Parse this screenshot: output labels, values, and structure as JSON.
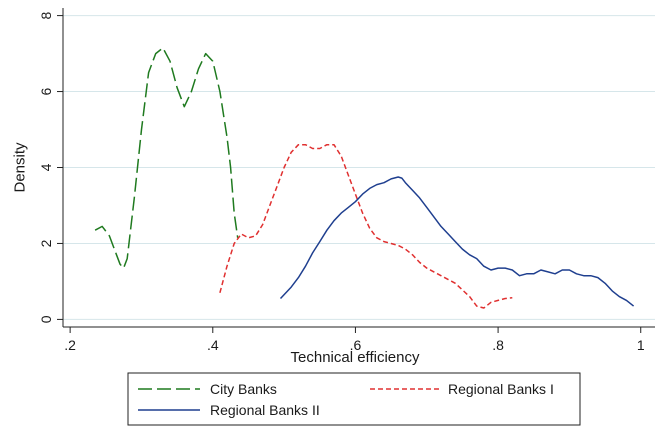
{
  "chart_data": {
    "type": "line",
    "title": "",
    "xlabel": "Technical efficiency",
    "ylabel": "Density",
    "xlim": [
      0.19,
      1.02
    ],
    "ylim": [
      -0.2,
      8.2
    ],
    "xticks": [
      {
        "value": 0.2,
        "label": ".2"
      },
      {
        "value": 0.4,
        "label": ".4"
      },
      {
        "value": 0.6,
        "label": ".6"
      },
      {
        "value": 0.8,
        "label": ".8"
      },
      {
        "value": 1.0,
        "label": "1"
      }
    ],
    "yticks": [
      {
        "value": 0,
        "label": "0"
      },
      {
        "value": 2,
        "label": "2"
      },
      {
        "value": 4,
        "label": "4"
      },
      {
        "value": 6,
        "label": "6"
      },
      {
        "value": 8,
        "label": "8"
      }
    ],
    "grid": true,
    "legend_position": "bottom",
    "series": [
      {
        "name": "City Banks",
        "color": "#1f7a1f",
        "style": "long-dash",
        "x": [
          0.235,
          0.245,
          0.255,
          0.265,
          0.27,
          0.275,
          0.28,
          0.29,
          0.3,
          0.31,
          0.32,
          0.33,
          0.34,
          0.35,
          0.36,
          0.37,
          0.38,
          0.39,
          0.4,
          0.41,
          0.42,
          0.425,
          0.43,
          0.435
        ],
        "y": [
          2.35,
          2.45,
          2.2,
          1.7,
          1.45,
          1.35,
          1.6,
          3.2,
          5.0,
          6.5,
          7.0,
          7.15,
          6.8,
          6.1,
          5.6,
          6.0,
          6.6,
          7.0,
          6.8,
          6.0,
          4.8,
          4.0,
          2.8,
          2.15
        ]
      },
      {
        "name": "Regional Banks I",
        "color": "#e03030",
        "style": "dash",
        "x": [
          0.41,
          0.42,
          0.43,
          0.44,
          0.45,
          0.46,
          0.47,
          0.48,
          0.49,
          0.5,
          0.51,
          0.52,
          0.53,
          0.54,
          0.55,
          0.56,
          0.57,
          0.58,
          0.59,
          0.6,
          0.61,
          0.62,
          0.63,
          0.64,
          0.65,
          0.66,
          0.67,
          0.68,
          0.69,
          0.7,
          0.72,
          0.74,
          0.76,
          0.77,
          0.78,
          0.79,
          0.8,
          0.81,
          0.82
        ],
        "y": [
          0.7,
          1.4,
          2.0,
          2.25,
          2.15,
          2.2,
          2.5,
          3.0,
          3.5,
          4.0,
          4.4,
          4.6,
          4.6,
          4.5,
          4.5,
          4.6,
          4.6,
          4.3,
          3.8,
          3.3,
          2.8,
          2.4,
          2.15,
          2.05,
          2.0,
          1.95,
          1.85,
          1.7,
          1.5,
          1.35,
          1.15,
          0.95,
          0.6,
          0.35,
          0.3,
          0.45,
          0.5,
          0.55,
          0.57
        ]
      },
      {
        "name": "Regional Banks II",
        "color": "#1f3f8f",
        "style": "solid",
        "x": [
          0.495,
          0.51,
          0.52,
          0.53,
          0.54,
          0.55,
          0.56,
          0.57,
          0.58,
          0.59,
          0.6,
          0.61,
          0.62,
          0.63,
          0.64,
          0.65,
          0.66,
          0.665,
          0.67,
          0.68,
          0.69,
          0.7,
          0.71,
          0.72,
          0.73,
          0.74,
          0.75,
          0.76,
          0.77,
          0.78,
          0.79,
          0.8,
          0.81,
          0.82,
          0.83,
          0.84,
          0.85,
          0.86,
          0.87,
          0.88,
          0.89,
          0.9,
          0.91,
          0.92,
          0.93,
          0.94,
          0.95,
          0.96,
          0.97,
          0.98,
          0.99
        ],
        "y": [
          0.55,
          0.85,
          1.1,
          1.4,
          1.75,
          2.05,
          2.35,
          2.6,
          2.8,
          2.95,
          3.1,
          3.3,
          3.45,
          3.55,
          3.6,
          3.7,
          3.75,
          3.72,
          3.6,
          3.4,
          3.2,
          2.95,
          2.7,
          2.45,
          2.25,
          2.05,
          1.85,
          1.7,
          1.6,
          1.4,
          1.3,
          1.35,
          1.35,
          1.3,
          1.15,
          1.2,
          1.2,
          1.3,
          1.25,
          1.2,
          1.3,
          1.3,
          1.2,
          1.15,
          1.15,
          1.1,
          0.95,
          0.75,
          0.6,
          0.5,
          0.35
        ]
      }
    ]
  }
}
